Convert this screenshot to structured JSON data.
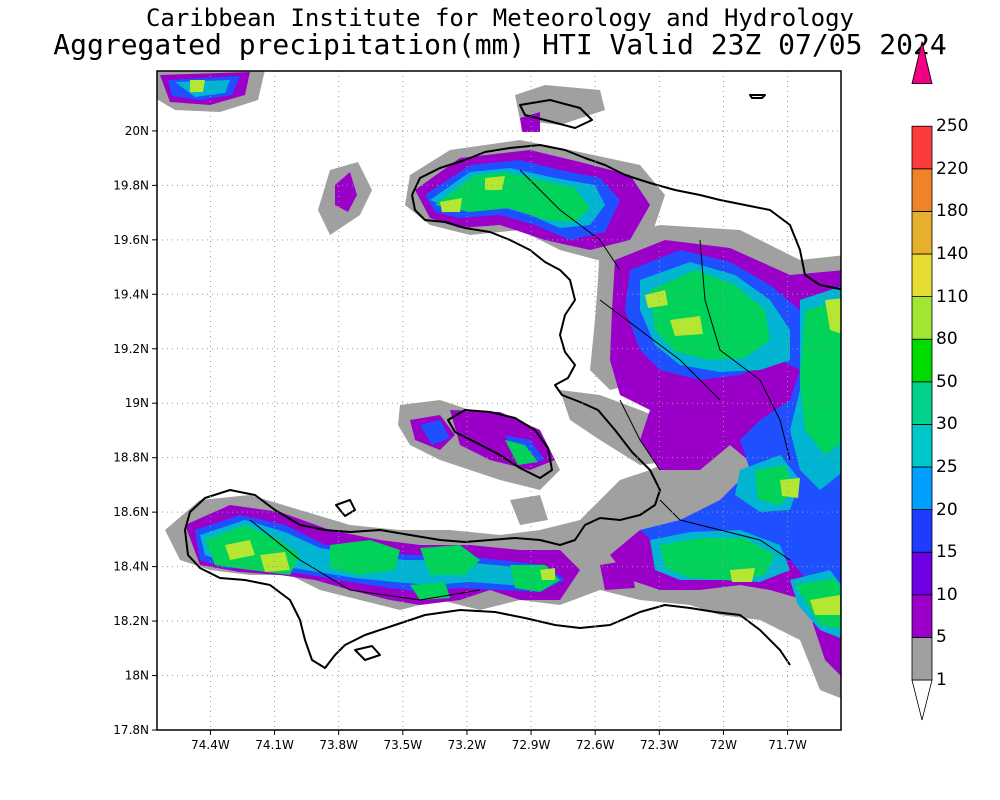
{
  "header": {
    "line1": "Caribbean Institute for Meteorology and Hydrology",
    "line2": "Aggregated precipitation(mm) HTI Valid 23Z 07/05 2024"
  },
  "axes": {
    "lat_labels": [
      "20N",
      "19.8N",
      "19.6N",
      "19.4N",
      "19.2N",
      "19N",
      "18.8N",
      "18.6N",
      "18.4N",
      "18.2N",
      "18N",
      "17.8N"
    ],
    "lat_values": [
      20.0,
      19.8,
      19.6,
      19.4,
      19.2,
      19.0,
      18.8,
      18.6,
      18.4,
      18.2,
      18.0,
      17.8
    ],
    "lon_labels": [
      "74.4W",
      "74.1W",
      "73.8W",
      "73.5W",
      "73.2W",
      "72.9W",
      "72.6W",
      "72.3W",
      "72W",
      "71.7W"
    ],
    "lon_values": [
      -74.4,
      -74.1,
      -73.8,
      -73.5,
      -73.2,
      -72.9,
      -72.6,
      -72.3,
      -72.0,
      -71.7
    ],
    "lat_range": [
      17.8,
      20.22
    ],
    "lon_range": [
      -74.65,
      -71.45
    ],
    "grid": true
  },
  "colorbar": {
    "levels": [
      "1",
      "5",
      "10",
      "15",
      "20",
      "25",
      "30",
      "50",
      "80",
      "110",
      "140",
      "180",
      "220",
      "250"
    ],
    "colors": [
      "#ffffff",
      "#a0a0a0",
      "#9a00c8",
      "#6e00e6",
      "#1e3cff",
      "#00a0ff",
      "#00c8c8",
      "#00d28c",
      "#00dc00",
      "#a0e632",
      "#e6dc32",
      "#e6af2d",
      "#f08228",
      "#fa3c3c",
      "#f00082"
    ]
  }
}
